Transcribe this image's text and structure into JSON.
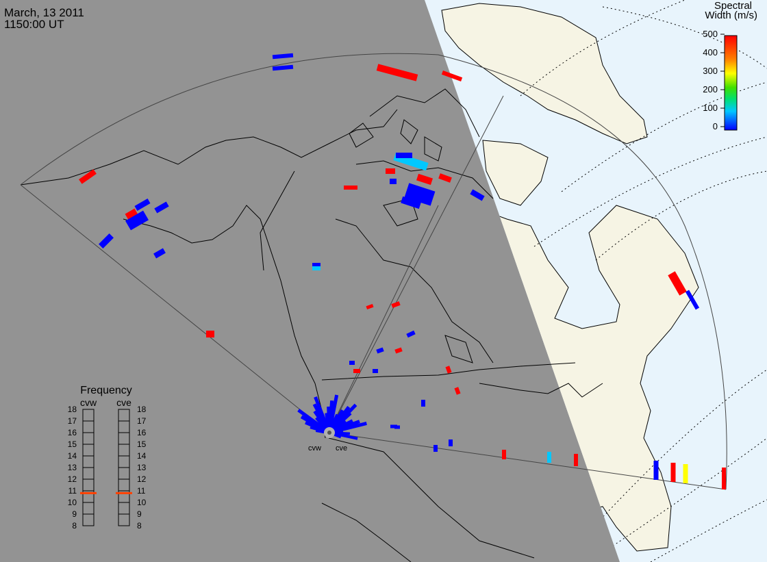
{
  "header": {
    "date": "March, 13 2011",
    "time": "1150:00 UT"
  },
  "colorbar": {
    "title_line1": "Spectral",
    "title_line2": "Width (m/s)",
    "ticks": [
      "0",
      "100",
      "200",
      "300",
      "400",
      "500"
    ],
    "range": [
      0,
      500
    ],
    "colors": [
      "#0000ff",
      "#00c8ff",
      "#00e070",
      "#40e000",
      "#ffff00",
      "#ff8000",
      "#ff0000"
    ]
  },
  "radars": [
    {
      "code": "cvw",
      "frequency_mhz": 10.8
    },
    {
      "code": "cve",
      "frequency_mhz": 10.8
    }
  ],
  "frequency_panel": {
    "title": "Frequency",
    "ticks": [
      "8",
      "9",
      "10",
      "11",
      "12",
      "13",
      "14",
      "15",
      "16",
      "17",
      "18"
    ],
    "range": [
      8,
      18
    ],
    "marker_color": "#ff4000"
  },
  "map": {
    "night_color": "#939393",
    "ocean_day_color": "#e8f4fc",
    "land_day_color": "#f6f4e4"
  },
  "scatter_width_values": [
    480,
    20,
    20,
    500,
    480,
    30,
    20,
    470,
    0,
    0,
    20,
    490,
    30,
    120,
    460,
    480,
    30,
    20,
    480,
    20,
    20,
    480,
    500,
    470,
    40,
    60,
    480,
    30,
    480,
    500,
    30,
    20,
    480,
    40,
    30,
    20,
    20,
    480,
    120,
    480,
    20,
    500,
    350,
    480,
    500,
    20,
    30,
    20
  ]
}
